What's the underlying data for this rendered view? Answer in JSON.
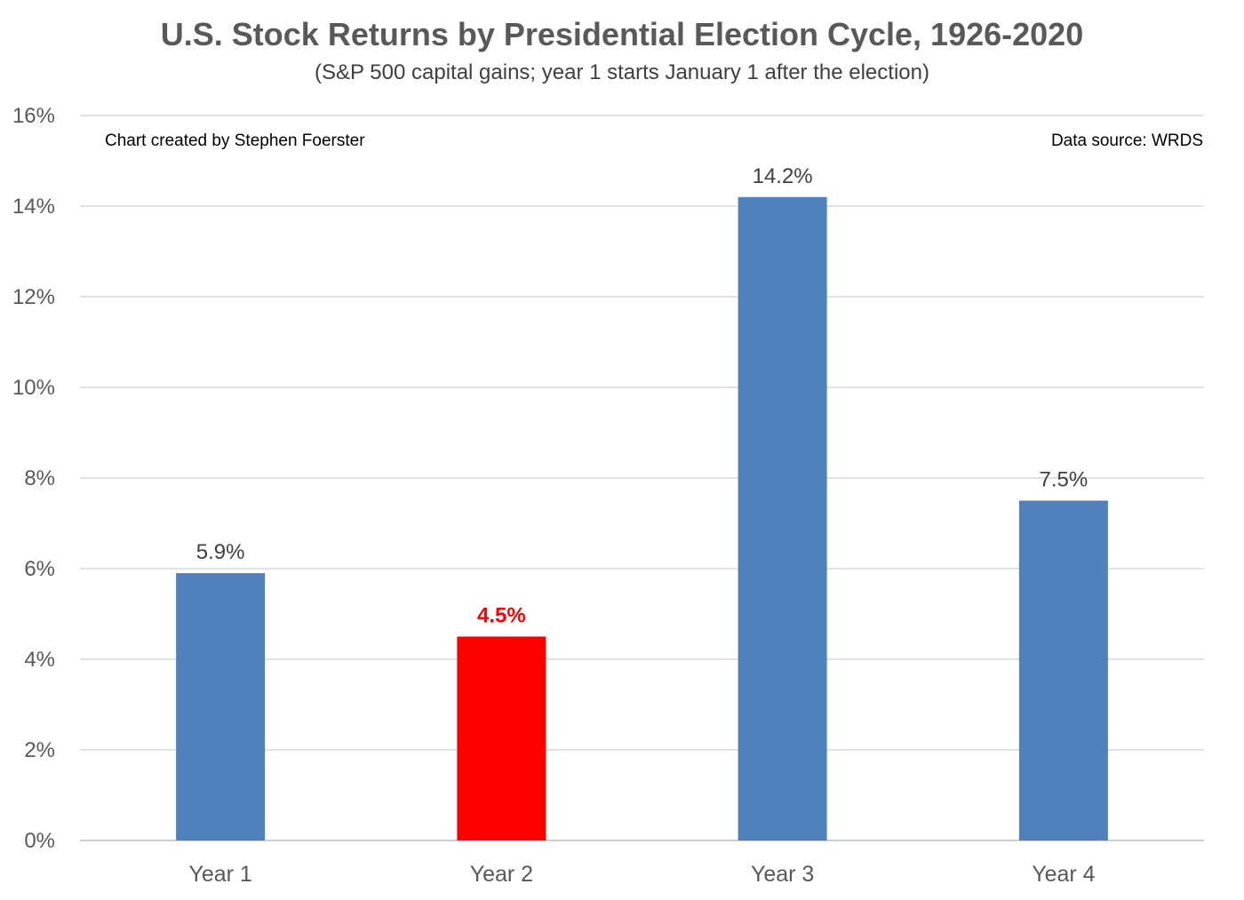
{
  "chart_data": {
    "type": "bar",
    "title": "U.S. Stock Returns by Presidential Election Cycle, 1926-2020",
    "subtitle": "(S&P 500 capital gains; year 1 starts January 1 after the election)",
    "annotations": {
      "left": "Chart created by Stephen Foerster",
      "right": "Data source: WRDS"
    },
    "categories": [
      "Year 1",
      "Year 2",
      "Year 3",
      "Year 4"
    ],
    "values": [
      5.9,
      4.5,
      14.2,
      7.5
    ],
    "data_labels": [
      "5.9%",
      "4.5%",
      "14.2%",
      "7.5%"
    ],
    "bar_colors": [
      "#4F81BD",
      "#FF0000",
      "#4F81BD",
      "#4F81BD"
    ],
    "label_colors": [
      "#404040",
      "#FF0000",
      "#404040",
      "#404040"
    ],
    "ylim": [
      0,
      16
    ],
    "yticks": [
      0,
      2,
      4,
      6,
      8,
      10,
      12,
      14,
      16
    ],
    "ytick_labels": [
      "0%",
      "2%",
      "4%",
      "6%",
      "8%",
      "10%",
      "12%",
      "14%",
      "16%"
    ],
    "grid": true,
    "legend": "none"
  }
}
